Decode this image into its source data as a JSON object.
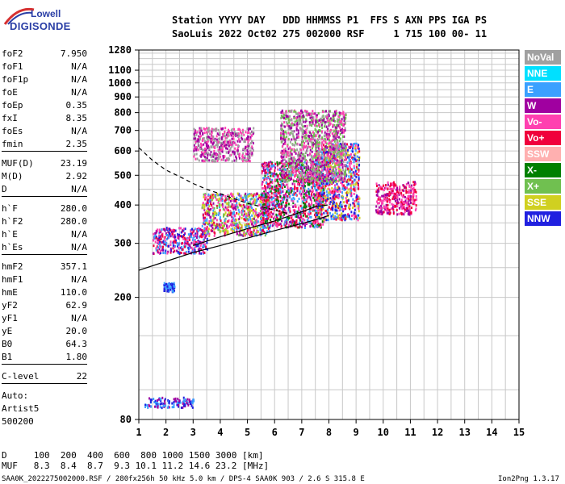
{
  "logo": {
    "top": "Lowell",
    "bottom": "DIGISONDE"
  },
  "header": {
    "line1": "Station YYYY DAY   DDD HHMMSS P1  FFS S AXN PPS IGA PS",
    "line2": "SaoLuis 2022 Oct02 275 002000 RSF     1 715 100 00- 11"
  },
  "params": [
    {
      "name": "foF2",
      "value": "7.950"
    },
    {
      "name": "foF1",
      "value": "N/A"
    },
    {
      "name": "foF1p",
      "value": "N/A"
    },
    {
      "name": "foE",
      "value": "N/A"
    },
    {
      "name": "foEp",
      "value": "0.35"
    },
    {
      "name": "fxI",
      "value": "8.35"
    },
    {
      "name": "foEs",
      "value": "N/A"
    },
    {
      "name": "fmin",
      "value": "2.35"
    },
    {
      "name": "MUF(D)",
      "value": "23.19"
    },
    {
      "name": "M(D)",
      "value": "2.92"
    },
    {
      "name": "D",
      "value": "N/A"
    },
    {
      "name": "h`F",
      "value": "280.0"
    },
    {
      "name": "h`F2",
      "value": "280.0"
    },
    {
      "name": "h`E",
      "value": "N/A"
    },
    {
      "name": "h`Es",
      "value": "N/A"
    },
    {
      "name": "hmF2",
      "value": "357.1"
    },
    {
      "name": "hmF1",
      "value": "N/A"
    },
    {
      "name": "hmE",
      "value": "110.0"
    },
    {
      "name": "yF2",
      "value": "62.9"
    },
    {
      "name": "yF1",
      "value": "N/A"
    },
    {
      "name": "yE",
      "value": "20.0"
    },
    {
      "name": "B0",
      "value": "64.3"
    },
    {
      "name": "B1",
      "value": "1.80"
    },
    {
      "name": "C-level",
      "value": "22"
    }
  ],
  "autoscaling": {
    "label": "Auto:",
    "artist": "Artist5",
    "version": "500200"
  },
  "legend": [
    {
      "label": "NoVal",
      "color": "#a0a0a0"
    },
    {
      "label": "NNE",
      "color": "#00e0ff"
    },
    {
      "label": "E",
      "color": "#3aa0ff"
    },
    {
      "label": "W",
      "color": "#a000a0"
    },
    {
      "label": "Vo-",
      "color": "#ff40b0"
    },
    {
      "label": "Vo+",
      "color": "#f0003c"
    },
    {
      "label": "SSW",
      "color": "#ffb0b0"
    },
    {
      "label": "X-",
      "color": "#008000"
    },
    {
      "label": "X+",
      "color": "#70c050"
    },
    {
      "label": "SSE",
      "color": "#d0d020"
    },
    {
      "label": "NNW",
      "color": "#2020e0"
    }
  ],
  "footer": {
    "d_row": "D     100  200  400  600  800 1000 1500 3000 [km]",
    "muf_row": "MUF   8.3  8.4  8.7  9.3 10.1 11.2 14.6 23.2 [MHz]",
    "file_info": "SAA0K_2022275002000.RSF / 280fx256h 50 kHz 5.0 km / DPS-4 SAA0K 903 / 2.6 S 315.8 E",
    "version": "Ion2Png 1.3.17"
  },
  "chart_data": {
    "type": "scatter",
    "title": "",
    "xlabel": "",
    "ylabel": "",
    "xlim": [
      1,
      15
    ],
    "ylim": [
      80,
      1280
    ],
    "x_ticks": [
      1,
      2,
      3,
      4,
      5,
      6,
      7,
      8,
      9,
      10,
      11,
      12,
      13,
      14,
      15
    ],
    "y_ticks": [
      80,
      200,
      300,
      400,
      500,
      600,
      700,
      800,
      900,
      1000,
      1100,
      1280
    ],
    "y_scale": "log",
    "grid": true,
    "curves": [
      {
        "name": "profile_lower",
        "style": "solid",
        "x": [
          1.0,
          2.0,
          3.0,
          4.0,
          5.0,
          6.0,
          7.0,
          7.7,
          8.0
        ],
        "y": [
          245,
          262,
          280,
          295,
          312,
          330,
          348,
          362,
          370
        ]
      },
      {
        "name": "profile_upper",
        "style": "solid",
        "x": [
          3.0,
          4.0,
          5.0,
          6.0,
          7.0,
          7.5,
          7.95
        ],
        "y": [
          295,
          315,
          335,
          355,
          380,
          395,
          400
        ]
      },
      {
        "name": "muf_trace",
        "style": "dashed",
        "x": [
          1.0,
          1.5,
          2.0,
          2.5,
          3.0,
          3.5,
          4.0,
          4.5,
          5.0,
          5.5,
          6.0,
          6.5
        ],
        "y": [
          615,
          560,
          520,
          495,
          470,
          450,
          435,
          420,
          405,
          395,
          385,
          375
        ]
      }
    ],
    "echo_clusters": [
      {
        "x": [
          1.2,
          3.0
        ],
        "y": [
          88,
          95
        ],
        "colors": [
          "W",
          "NNW",
          "E"
        ]
      },
      {
        "x": [
          1.9,
          2.3
        ],
        "y": [
          210,
          225
        ],
        "colors": [
          "NNW",
          "E"
        ]
      },
      {
        "x": [
          1.5,
          3.5
        ],
        "y": [
          280,
          340
        ],
        "colors": [
          "W",
          "Vo-",
          "Vo+",
          "NNW",
          "E"
        ]
      },
      {
        "x": [
          3.3,
          5.8
        ],
        "y": [
          320,
          440
        ],
        "colors": [
          "Vo-",
          "W",
          "Vo+",
          "E",
          "X+",
          "SSE"
        ]
      },
      {
        "x": [
          5.5,
          7.8
        ],
        "y": [
          340,
          560
        ],
        "colors": [
          "Vo+",
          "Vo-",
          "W",
          "E",
          "X-"
        ]
      },
      {
        "x": [
          7.5,
          9.1
        ],
        "y": [
          360,
          640
        ],
        "colors": [
          "Vo+",
          "Vo-",
          "NNW",
          "E",
          "SSE"
        ]
      },
      {
        "x": [
          3.0,
          5.2
        ],
        "y": [
          560,
          720
        ],
        "colors": [
          "W",
          "Vo-",
          "NoVal"
        ]
      },
      {
        "x": [
          6.2,
          8.6
        ],
        "y": [
          480,
          820
        ],
        "colors": [
          "W",
          "Vo-",
          "NoVal",
          "X+"
        ]
      },
      {
        "x": [
          9.7,
          11.2
        ],
        "y": [
          375,
          480
        ],
        "colors": [
          "Vo+",
          "Vo-",
          "W"
        ]
      }
    ]
  }
}
